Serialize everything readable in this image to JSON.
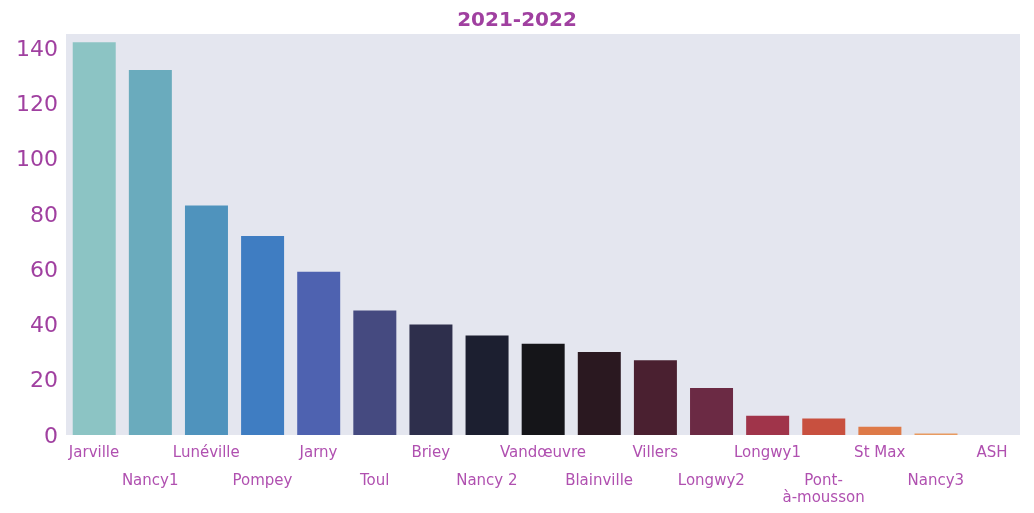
{
  "chart_data": {
    "type": "bar",
    "title": "2021-2022",
    "categories": [
      "Jarville",
      "Nancy1",
      "Lunéville",
      "Pompey",
      "Jarny",
      "Toul",
      "Briey",
      "Nancy 2",
      "Vandœuvre",
      "Blainville",
      "Villers",
      "Longwy2",
      "Longwy1",
      "Pont-à-mousson",
      "St Max",
      "Nancy3",
      "ASH"
    ],
    "values": [
      142,
      132,
      83,
      72,
      59,
      45,
      40,
      36,
      33,
      30,
      27,
      17,
      7,
      6,
      3,
      0.5,
      0
    ],
    "colors": [
      "#8cc4c4",
      "#6aabbd",
      "#4f93bd",
      "#3f7dc2",
      "#4e62b0",
      "#454a80",
      "#2e2f4c",
      "#1c1f30",
      "#151519",
      "#2a1820",
      "#4a2030",
      "#6b2a44",
      "#a0344a",
      "#c8503f",
      "#de7a48",
      "#e89a60",
      "#e8a070"
    ],
    "ylim": [
      0,
      145
    ],
    "yticks": [
      0,
      20,
      40,
      60,
      80,
      100,
      120,
      140
    ]
  }
}
